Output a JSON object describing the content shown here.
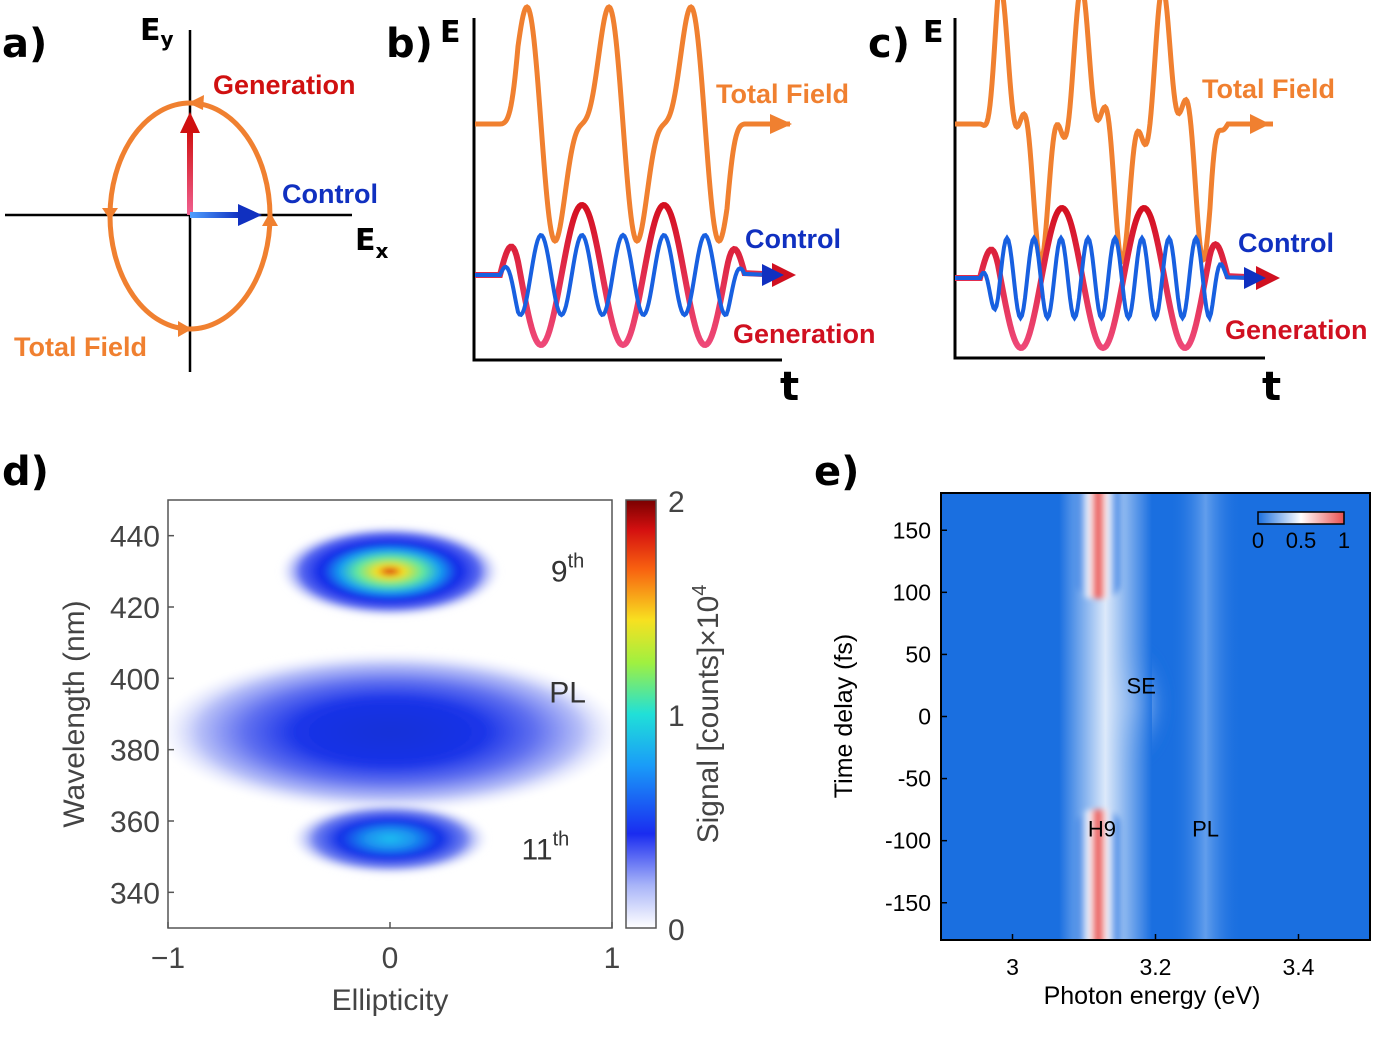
{
  "panel_labels": [
    "a)",
    "b)",
    "c)",
    "d)",
    "e)"
  ],
  "colors": {
    "total_field": "#f08030",
    "control": "#1030c0",
    "generation": "#d01020",
    "panel_e_background": "#1a6fe0",
    "panel_e_peak": "#e85555"
  },
  "panel_a": {
    "x_axis_label": "E",
    "x_axis_sub": "x",
    "y_axis_label": "E",
    "y_axis_sub": "y",
    "labels": {
      "generation": "Generation",
      "control": "Control",
      "total_field": "Total Field"
    }
  },
  "panel_b": {
    "y_axis_label": "E",
    "x_axis_label": "t",
    "labels": {
      "total_field": "Total Field",
      "control": "Control",
      "generation": "Generation"
    }
  },
  "panel_c": {
    "y_axis_label": "E",
    "x_axis_label": "t",
    "labels": {
      "total_field": "Total Field",
      "control": "Control",
      "generation": "Generation"
    }
  },
  "chart_data": [
    {
      "panel": "d",
      "type": "heatmap",
      "xlabel": "Ellipticity",
      "ylabel": "Wavelength (nm)",
      "xlim": [
        -1,
        1
      ],
      "ylim": [
        330,
        450
      ],
      "x_ticks": [
        "−1",
        "0",
        "1"
      ],
      "y_ticks": [
        "340",
        "360",
        "380",
        "400",
        "420",
        "440"
      ],
      "colorbar": {
        "label": "Signal [counts]×10",
        "label_sup": "4",
        "range": [
          0,
          2
        ],
        "ticks": [
          "0",
          "1",
          "2"
        ]
      },
      "annotations": [
        {
          "text": "9",
          "sup": "th",
          "x": 0.8,
          "y": 430
        },
        {
          "text": "PL",
          "x": 0.8,
          "y": 396
        },
        {
          "text": "11",
          "sup": "th",
          "x": 0.7,
          "y": 352
        }
      ],
      "features": [
        {
          "name": "9th harmonic",
          "center_x": 0.0,
          "center_y": 430,
          "peak": 1.6,
          "half_width_x": 0.5,
          "half_width_y": 10
        },
        {
          "name": "PL",
          "center_x": 0.0,
          "center_y": 385,
          "peak": 0.55,
          "half_width_x": 1.0,
          "half_width_y": 12
        },
        {
          "name": "11th harmonic",
          "center_x": 0.0,
          "center_y": 355,
          "peak": 0.85,
          "half_width_x": 0.45,
          "half_width_y": 8
        }
      ]
    },
    {
      "panel": "e",
      "type": "heatmap",
      "xlabel": "Photon energy (eV)",
      "ylabel": "Time delay (fs)",
      "xlim": [
        2.9,
        3.5
      ],
      "ylim": [
        -180,
        180
      ],
      "x_ticks": [
        "3",
        "3.2",
        "3.4"
      ],
      "y_ticks": [
        "150",
        "100",
        "50",
        "0",
        "-50",
        "-100",
        "-150"
      ],
      "colorbar": {
        "range": [
          0,
          1
        ],
        "ticks": [
          "0",
          "0.5",
          "1"
        ]
      },
      "annotations": [
        {
          "text": "SE",
          "x": 3.18,
          "y": 25
        },
        {
          "text": "H9",
          "x": 3.125,
          "y": -90
        },
        {
          "text": "PL",
          "x": 3.27,
          "y": -90
        }
      ],
      "features": [
        {
          "name": "H9 upper",
          "energy": 3.12,
          "delay_range": [
            95,
            180
          ],
          "value": 1.0
        },
        {
          "name": "H9 lower",
          "energy": 3.12,
          "delay_range": [
            -180,
            -75
          ],
          "value": 1.0
        },
        {
          "name": "SE",
          "energy": 3.17,
          "delay_range": [
            -40,
            60
          ],
          "value": 0.35
        },
        {
          "name": "PL",
          "energy": 3.27,
          "delay_range": [
            -180,
            180
          ],
          "value": 0.2
        }
      ]
    }
  ]
}
